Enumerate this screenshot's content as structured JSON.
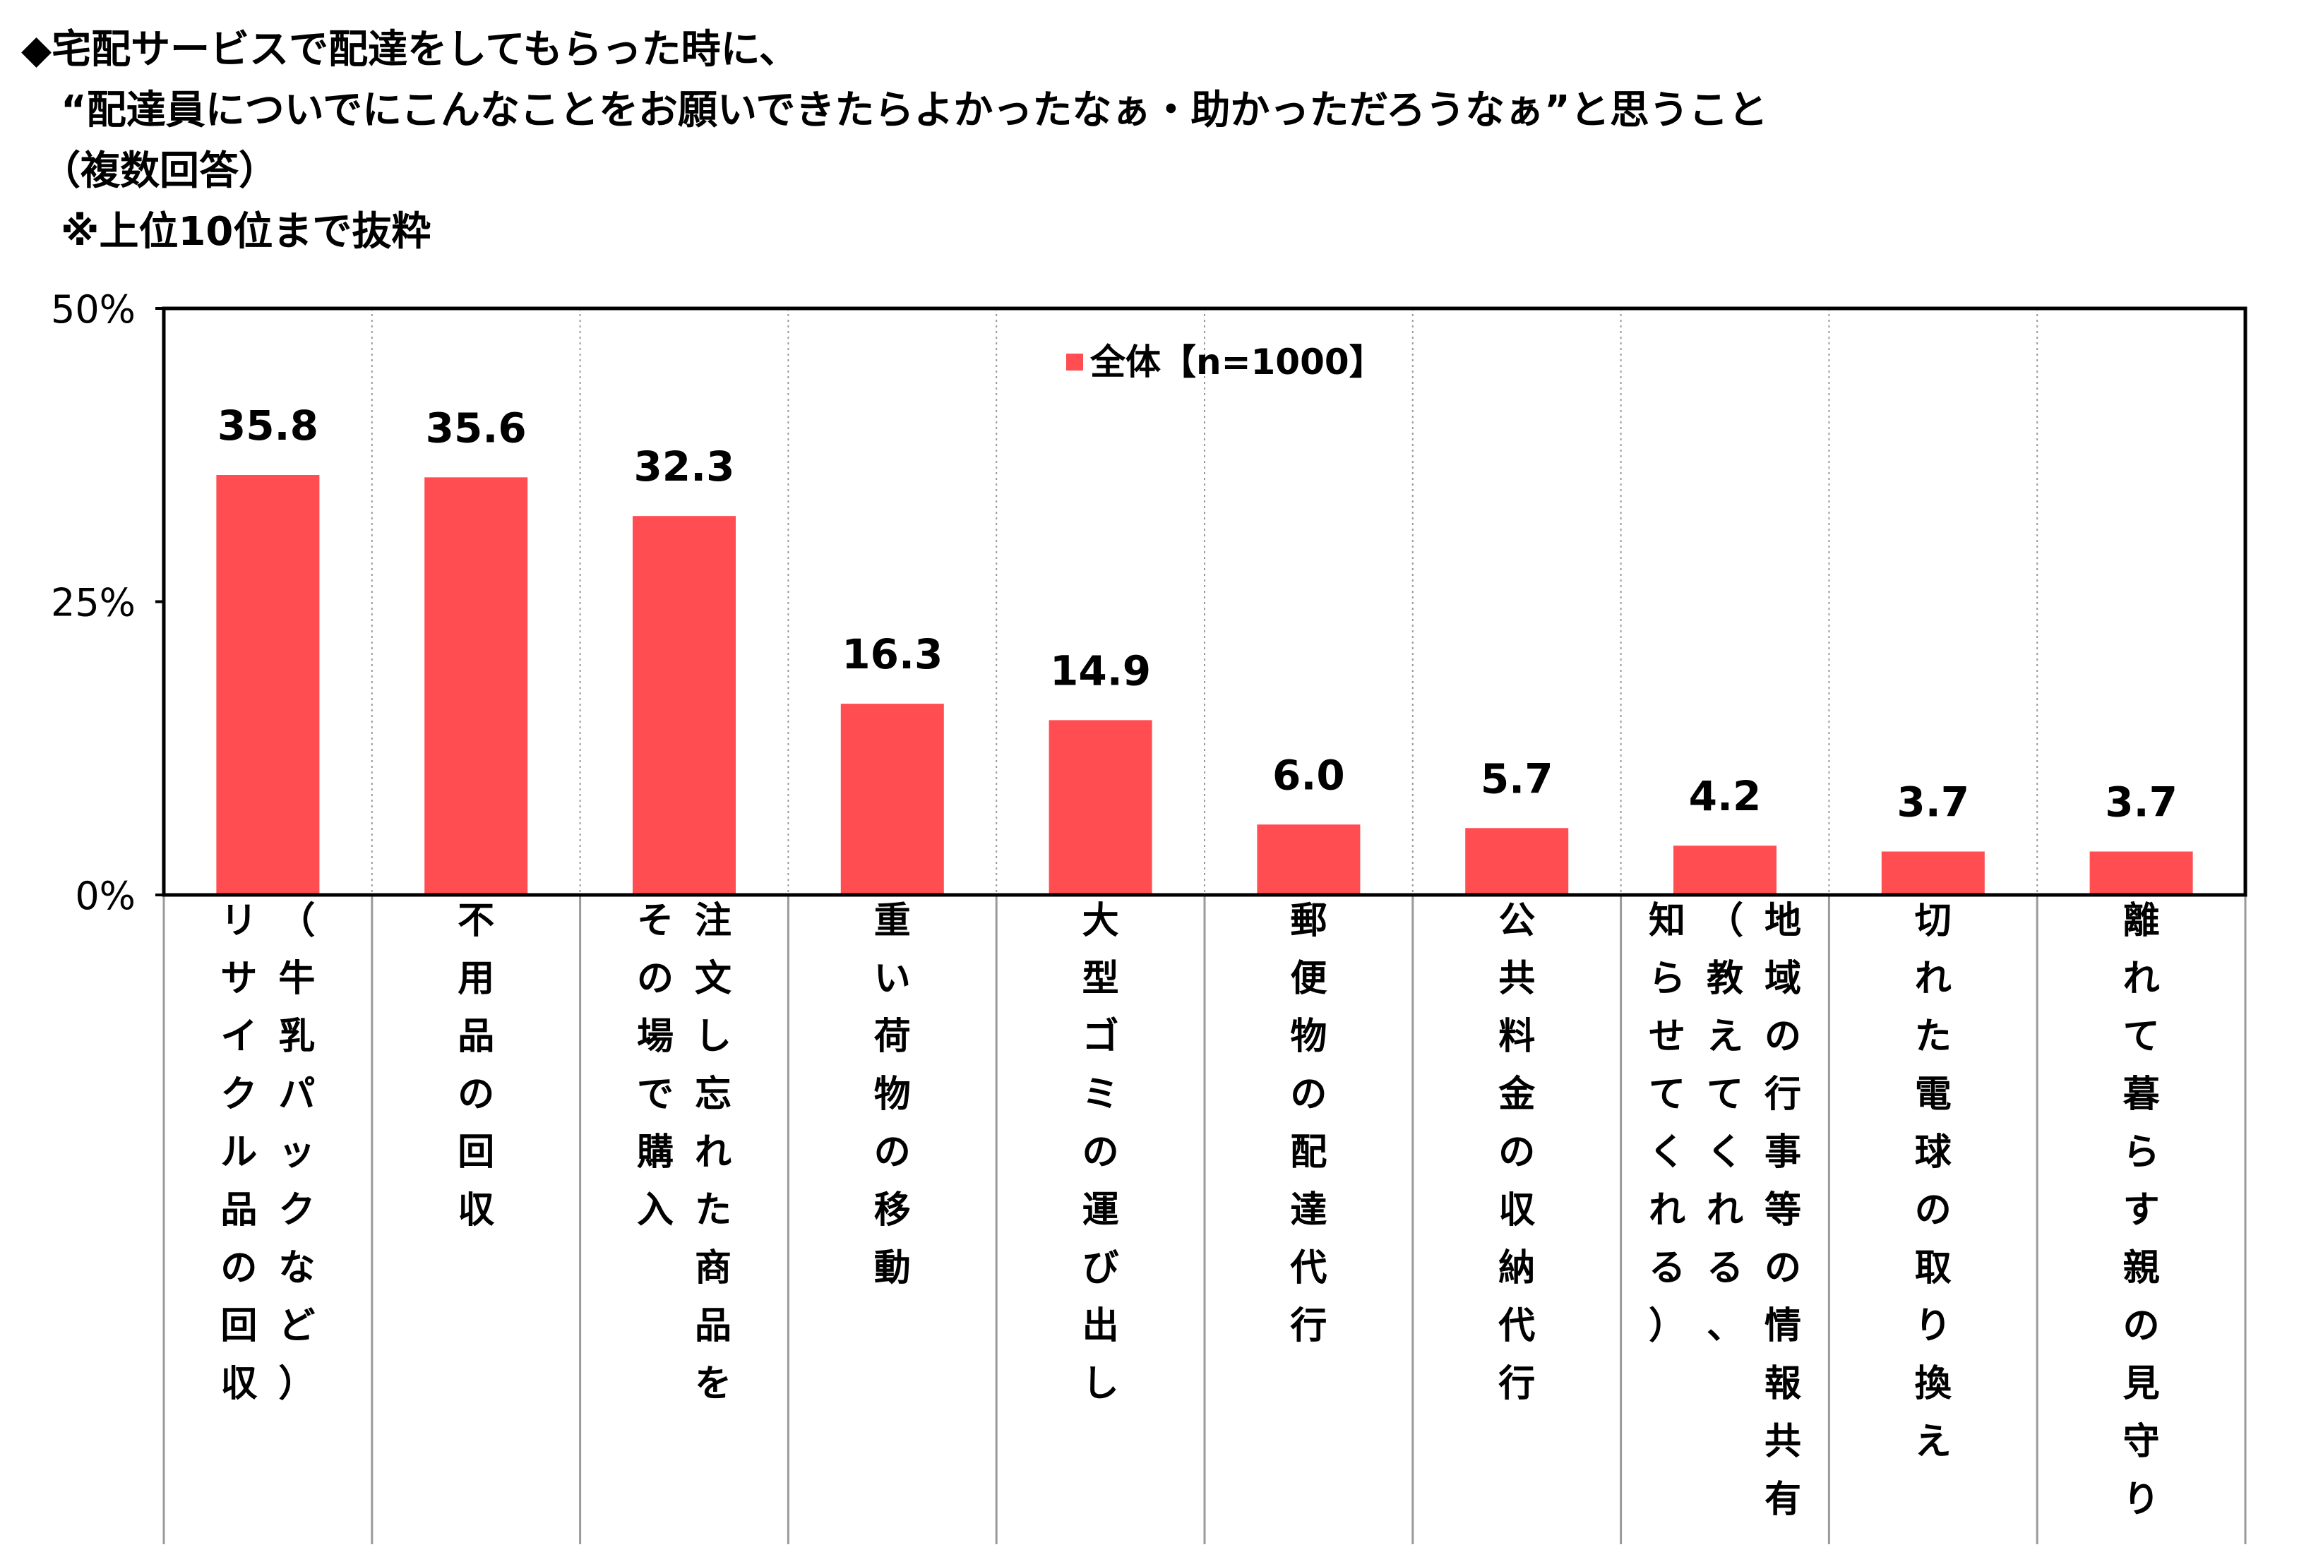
{
  "title_lines": [
    "◆宅配サービスで配達をしてもらった時に、",
    "　“配達員についでにこんなことをお願いできたらよかったなぁ・助かっただろうなぁ”と思うこと",
    "　（複数回答）",
    "　※上位10位まで抜粋"
  ],
  "chart_data": {
    "type": "bar",
    "title": "",
    "xlabel": "",
    "ylabel": "",
    "ylim": [
      0,
      50
    ],
    "yticks": [
      0,
      25,
      50
    ],
    "ytick_labels": [
      "0%",
      "25%",
      "50%"
    ],
    "grid": "vertical dotted separators between categories",
    "legend_position": "top-center",
    "colors": {
      "bar": "#FF4D52",
      "frame": "#000000",
      "grid": "#9a9a9a"
    },
    "categories": [
      "リサイクル品の回収（牛乳パックなど）",
      "不用品の回収",
      "注文し忘れた商品をその場で購入",
      "重い荷物の移動",
      "大型ゴミの運び出し",
      "郵便物の配達代行",
      "公共料金の収納代行",
      "地域の行事等の情報共有（教えてくれる、知らせてくれる）",
      "切れた電球の取り換え",
      "離れて暮らす親の見守り"
    ],
    "label_columns": [
      [
        "（牛乳パックなど）",
        "リサイクル品の回収"
      ],
      [
        "不用品の回収"
      ],
      [
        "注文し忘れた商品を",
        "その場で購入"
      ],
      [
        "重い荷物の移動"
      ],
      [
        "大型ゴミの運び出し"
      ],
      [
        "郵便物の配達代行"
      ],
      [
        "公共料金の収納代行"
      ],
      [
        "地域の行事等の情報共有",
        "（教えてくれる、",
        "知らせてくれる）"
      ],
      [
        "切れた電球の取り換え"
      ],
      [
        "離れて暮らす親の見守り"
      ]
    ],
    "series": [
      {
        "name": "全体【n=1000】",
        "values": [
          35.8,
          35.6,
          32.3,
          16.3,
          14.9,
          6.0,
          5.7,
          4.2,
          3.7,
          3.7
        ],
        "labels": [
          "35.8",
          "35.6",
          "32.3",
          "16.3",
          "14.9",
          "6.0",
          "5.7",
          "4.2",
          "3.7",
          "3.7"
        ]
      }
    ]
  }
}
